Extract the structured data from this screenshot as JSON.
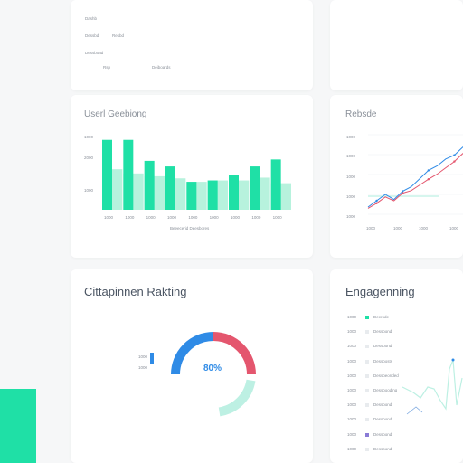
{
  "top_card": {
    "lines": [
      "Dashb",
      "Dessbd",
      "Dessboad",
      "Resbd",
      "Rsp",
      "Deiboards"
    ]
  },
  "user_card": {
    "title": "Userl Geebiong",
    "caption": "Beeecerid Deesbores",
    "y_ticks": [
      "1000",
      "2000",
      "1000"
    ]
  },
  "rebate_card": {
    "title": "Rebsde",
    "y_ticks": [
      "1000",
      "1000",
      "1000",
      "1000",
      "1000"
    ],
    "x_ticks": [
      "1000",
      "1000",
      "1000",
      "1000"
    ]
  },
  "citation_card": {
    "title": "Cittapinnen Rakting",
    "percent": "80%",
    "legend": [
      "1000",
      "1000"
    ],
    "donut_fraction": 0.8
  },
  "engagement_card": {
    "title": "Engagenning",
    "rows": [
      {
        "tick": "1000",
        "label": "Decrode"
      },
      {
        "tick": "1000",
        "label": "Dessbond"
      },
      {
        "tick": "1000",
        "label": "Dessbond"
      },
      {
        "tick": "1000",
        "label": "Dessbosts"
      },
      {
        "tick": "1000",
        "label": "Dessbeonded"
      },
      {
        "tick": "1000",
        "label": "Dessbooding"
      },
      {
        "tick": "1000",
        "label": "Dessbond"
      },
      {
        "tick": "1000",
        "label": "Dessbond"
      },
      {
        "tick": "1000",
        "label": "Dessbond"
      },
      {
        "tick": "1000",
        "label": "Dessbond"
      }
    ]
  },
  "colors": {
    "accent": "#1fe0a6",
    "accent_light": "#b7f2dd",
    "blue": "#2f8be6",
    "red": "#e4566e",
    "teal_soft": "#bdf0e3"
  },
  "chart_data": [
    {
      "type": "bar",
      "title": "Userl Geebiong",
      "categories": [
        "1000",
        "1000",
        "1000",
        "1000",
        "1000",
        "1000",
        "1000",
        "1000",
        "1000"
      ],
      "series": [
        {
          "values": [
            100,
            100,
            70,
            62,
            40,
            42,
            50,
            62,
            72
          ]
        },
        {
          "values": [
            58,
            52,
            48,
            45,
            40,
            42,
            42,
            46,
            38
          ]
        }
      ],
      "ylim": [
        0,
        110
      ]
    },
    {
      "type": "line",
      "title": "Rebsde",
      "x": [
        0,
        1,
        2,
        3,
        4,
        5,
        6,
        7,
        8,
        9,
        10,
        11
      ],
      "series": [
        {
          "values": [
            2,
            3,
            4,
            3.2,
            4.5,
            5.2,
            6.5,
            7.8,
            8.5,
            9.6,
            10.2,
            11.5
          ]
        },
        {
          "values": [
            1.8,
            2.6,
            3.6,
            3.0,
            4.2,
            4.6,
            5.5,
            6.4,
            7.2,
            8.2,
            9.2,
            10.5
          ]
        }
      ],
      "ylim": [
        0,
        14
      ]
    },
    {
      "type": "pie",
      "title": "Cittapinnen Rakting",
      "values": [
        80,
        20
      ]
    },
    {
      "type": "line",
      "title": "Engagenning",
      "x": [
        0,
        1,
        2,
        3,
        4,
        5,
        6,
        7,
        8,
        9,
        10
      ],
      "series": [
        {
          "values": [
            10,
            9,
            7,
            5,
            6,
            8,
            4,
            6,
            2,
            10,
            3
          ]
        }
      ],
      "ylim": [
        0,
        12
      ]
    }
  ]
}
